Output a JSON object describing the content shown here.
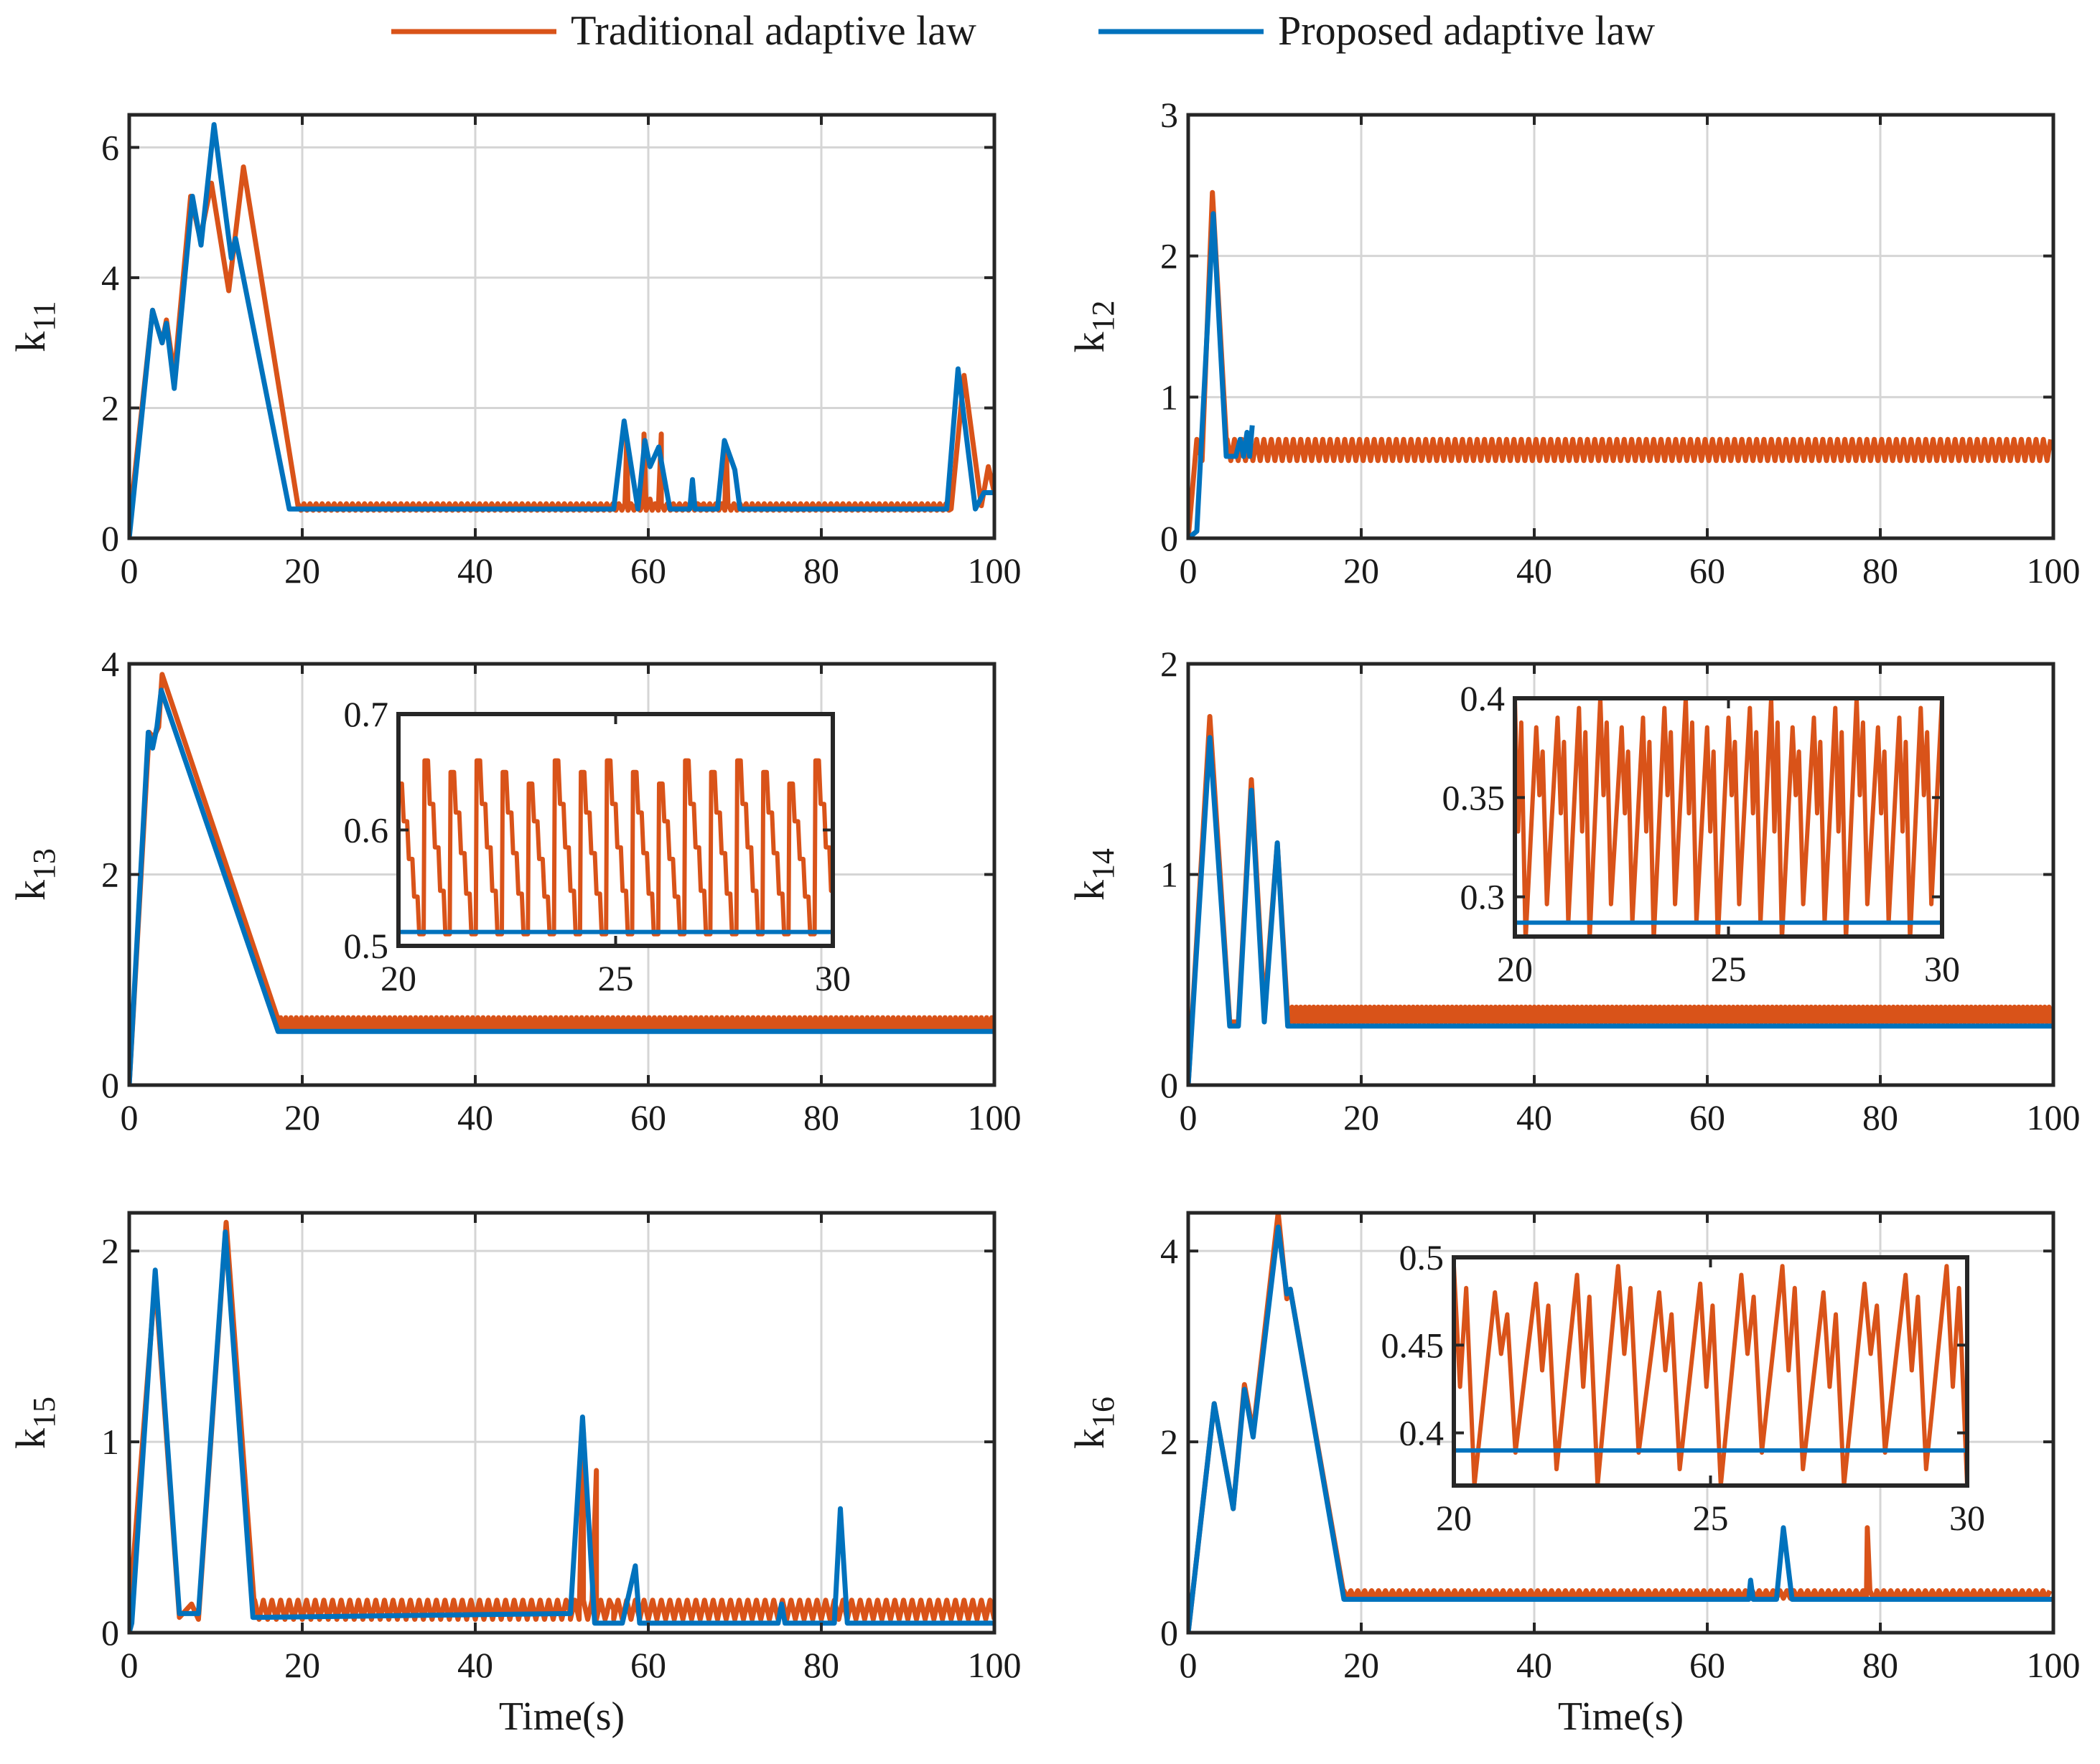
{
  "legend": {
    "entries": [
      {
        "label": "Traditional adaptive law",
        "color": "#D95319"
      },
      {
        "label": "Proposed adaptive law",
        "color": "#0072BD"
      }
    ]
  },
  "chart_data": [
    {
      "id": "k11",
      "type": "line",
      "ylabel": "k",
      "ylabel_sub": "11",
      "xlabel": "",
      "xlim": [
        0,
        100
      ],
      "ylim": [
        0,
        6.5
      ],
      "xticks": [
        "0",
        "20",
        "40",
        "60",
        "80",
        "100"
      ],
      "yticks": [
        "0",
        "2",
        "4",
        "6"
      ],
      "grid": true,
      "series": [
        {
          "name": "Traditional adaptive law",
          "osc": {
            "from": 19.5,
            "to": 95,
            "base": 0.43,
            "amp": 0.1,
            "period": 0.7
          },
          "x": [
            0,
            2.7,
            3.8,
            4.3,
            5.2,
            7.1,
            8.2,
            9.5,
            11.5,
            13.2,
            19.5,
            56,
            57.5,
            58.8,
            59.5,
            60.2,
            61.5,
            65,
            66,
            69,
            70.5,
            72,
            95,
            96.5,
            98.5,
            99.3,
            100
          ],
          "y": [
            0.2,
            3.5,
            3.0,
            3.35,
            2.5,
            5.25,
            4.6,
            5.45,
            3.8,
            5.7,
            0.5,
            0.45,
            1.5,
            0.55,
            1.6,
            0.6,
            1.6,
            0.5,
            0.5,
            1.4,
            0.5,
            0.5,
            0.45,
            2.5,
            0.5,
            1.1,
            0.7
          ]
        },
        {
          "name": "Proposed adaptive law",
          "x": [
            0,
            2.7,
            3.8,
            4.3,
            5.2,
            7.3,
            8.3,
            9.8,
            11.8,
            12.3,
            18.5,
            56,
            57.2,
            58.8,
            59.6,
            60.2,
            61.2,
            62.5,
            64.8,
            65.1,
            65.4,
            68,
            68.8,
            70,
            70.6,
            72,
            94.5,
            95.8,
            97.8,
            98.8,
            100
          ],
          "y": [
            0,
            3.5,
            3.0,
            3.3,
            2.3,
            5.25,
            4.5,
            6.35,
            4.3,
            4.6,
            0.45,
            0.45,
            1.8,
            0.45,
            1.5,
            1.1,
            1.4,
            0.45,
            0.45,
            0.9,
            0.45,
            0.45,
            1.5,
            1.05,
            0.45,
            0.45,
            0.45,
            2.6,
            0.45,
            0.7,
            0.7
          ]
        }
      ]
    },
    {
      "id": "k12",
      "type": "line",
      "ylabel": "k",
      "ylabel_sub": "12",
      "xlabel": "",
      "xlim": [
        0,
        100
      ],
      "ylim": [
        0,
        3
      ],
      "xticks": [
        "0",
        "20",
        "40",
        "60",
        "80",
        "100"
      ],
      "yticks": [
        "0",
        "1",
        "2",
        "3"
      ],
      "grid": true,
      "series": [
        {
          "name": "Traditional adaptive law",
          "osc": {
            "from": 4.5,
            "to": 100,
            "base": 0.55,
            "amp": 0.15,
            "period": 0.85
          },
          "x": [
            0,
            1,
            1.6,
            2.8,
            4.5
          ],
          "y": [
            0,
            0.7,
            0.55,
            2.45,
            0.6
          ]
        },
        {
          "name": "Proposed adaptive law",
          "x": [
            0,
            1.0,
            2.9,
            4.4,
            5.5,
            6.0,
            6.4,
            6.8,
            7.1,
            7.4
          ],
          "y": [
            0,
            0.05,
            2.3,
            0.58,
            0.58,
            0.7,
            0.58,
            0.75,
            0.58,
            0.8
          ]
        }
      ]
    },
    {
      "id": "k13",
      "type": "line",
      "ylabel": "k",
      "ylabel_sub": "13",
      "xlabel": "",
      "xlim": [
        0,
        100
      ],
      "ylim": [
        0,
        4
      ],
      "xticks": [
        "0",
        "20",
        "40",
        "60",
        "80",
        "100"
      ],
      "yticks": [
        "0",
        "2",
        "4"
      ],
      "grid": true,
      "series": [
        {
          "name": "Traditional adaptive law",
          "osc": {
            "from": 17.5,
            "to": 100,
            "base": 0.52,
            "amp": 0.12,
            "period": 0.6
          },
          "x": [
            0,
            2.3,
            2.8,
            3.4,
            3.8,
            17.5
          ],
          "y": [
            0,
            3.35,
            3.3,
            3.4,
            3.9,
            0.55
          ]
        },
        {
          "name": "Proposed adaptive law",
          "x": [
            0,
            2.2,
            2.7,
            3.2,
            3.7,
            17.2,
            100
          ],
          "y": [
            0,
            3.35,
            3.2,
            3.4,
            3.75,
            0.51,
            0.51
          ]
        }
      ],
      "inset": {
        "xlim": [
          20,
          30
        ],
        "ylim": [
          0.5,
          0.7
        ],
        "xticks": [
          "20",
          "25",
          "30"
        ],
        "yticks": [
          "0.5",
          "0.6",
          "0.7"
        ],
        "series": [
          {
            "name": "Traditional adaptive law",
            "sawtooth": {
              "base": 0.51,
              "amp_hi": 0.66,
              "period": 0.6
            }
          },
          {
            "name": "Proposed adaptive law",
            "x": [
              20,
              30
            ],
            "y": [
              0.512,
              0.512
            ]
          }
        ]
      }
    },
    {
      "id": "k14",
      "type": "line",
      "ylabel": "k",
      "ylabel_sub": "14",
      "xlabel": "",
      "xlim": [
        0,
        100
      ],
      "ylim": [
        0,
        2
      ],
      "xticks": [
        "0",
        "20",
        "40",
        "60",
        "80",
        "100"
      ],
      "yticks": [
        "0",
        "1",
        "2"
      ],
      "grid": true,
      "series": [
        {
          "name": "Traditional adaptive law",
          "osc": {
            "from": 11.5,
            "to": 100,
            "base": 0.3,
            "amp": 0.07,
            "period": 0.5
          },
          "x": [
            0,
            2.5,
            4.8,
            5.8,
            7.3,
            8.8,
            10.3,
            11.5
          ],
          "y": [
            0,
            1.75,
            0.3,
            0.3,
            1.45,
            0.35,
            1.15,
            0.33
          ]
        },
        {
          "name": "Proposed adaptive law",
          "x": [
            0,
            2.5,
            4.8,
            5.8,
            7.3,
            8.8,
            10.3,
            11.5,
            100
          ],
          "y": [
            0,
            1.65,
            0.28,
            0.28,
            1.4,
            0.3,
            1.15,
            0.28,
            0.28
          ]
        }
      ],
      "inset": {
        "xlim": [
          20,
          30
        ],
        "ylim": [
          0.28,
          0.4
        ],
        "xticks": [
          "20",
          "25",
          "30"
        ],
        "yticks": [
          "0.3",
          "0.35",
          "0.4"
        ],
        "series": [
          {
            "name": "Traditional adaptive law",
            "zig": {
              "lo": 0.278,
              "hi": 0.4,
              "period": 0.5
            }
          },
          {
            "name": "Proposed adaptive law",
            "x": [
              20,
              30
            ],
            "y": [
              0.287,
              0.287
            ]
          }
        ]
      }
    },
    {
      "id": "k15",
      "type": "line",
      "ylabel": "k",
      "ylabel_sub": "15",
      "xlabel": "Time(s)",
      "xlim": [
        0,
        100
      ],
      "ylim": [
        0,
        2.2
      ],
      "xticks": [
        "0",
        "20",
        "40",
        "60",
        "80",
        "100"
      ],
      "yticks": [
        "0",
        "1",
        "2"
      ],
      "grid": true,
      "series": [
        {
          "name": "Traditional adaptive law",
          "osc": {
            "from": 14.5,
            "to": 100,
            "base": 0.07,
            "amp": 0.1,
            "period": 1.0
          },
          "x": [
            0,
            3.0,
            5.8,
            7.2,
            8.0,
            11.2,
            14.5,
            51,
            52.5,
            54.0,
            55.2,
            56.0
          ],
          "y": [
            0.1,
            1.85,
            0.08,
            0.15,
            0.07,
            2.15,
            0.12,
            0.1,
            1.05,
            0.85,
            0.1,
            0.12
          ]
        },
        {
          "name": "Proposed adaptive law",
          "x": [
            0,
            0.3,
            3.0,
            5.8,
            8.0,
            11.1,
            14.3,
            51,
            52.4,
            53.8,
            54.5,
            57,
            58.5,
            59,
            75,
            75.4,
            75.8,
            81.5,
            82.2,
            83,
            100
          ],
          "y": [
            0,
            0.05,
            1.9,
            0.1,
            0.1,
            2.1,
            0.08,
            0.1,
            1.13,
            0.05,
            0.05,
            0.05,
            0.35,
            0.05,
            0.05,
            0.15,
            0.05,
            0.05,
            0.65,
            0.05,
            0.05
          ]
        }
      ]
    },
    {
      "id": "k16",
      "type": "line",
      "ylabel": "k",
      "ylabel_sub": "16",
      "xlabel": "Time(s)",
      "xlim": [
        0,
        100
      ],
      "ylim": [
        0,
        4.4
      ],
      "xticks": [
        "0",
        "20",
        "40",
        "60",
        "80",
        "100"
      ],
      "yticks": [
        "0",
        "2",
        "4"
      ],
      "grid": true,
      "series": [
        {
          "name": "Traditional adaptive law",
          "osc": {
            "from": 18,
            "to": 100,
            "base": 0.36,
            "amp": 0.08,
            "period": 0.8
          },
          "x": [
            0,
            3,
            5.2,
            6.5,
            7.5,
            10.4,
            11.4,
            11.8,
            18,
            77,
            78.5,
            79.5
          ],
          "y": [
            0,
            2.4,
            1.3,
            2.6,
            2.1,
            4.4,
            3.5,
            3.6,
            0.4,
            0.4,
            1.1,
            0.4
          ]
        },
        {
          "name": "Proposed adaptive law",
          "x": [
            0,
            3,
            5.2,
            6.5,
            7.5,
            10.4,
            11.4,
            11.8,
            18,
            64.8,
            65.0,
            65.3,
            68,
            68.8,
            69.8,
            71,
            100
          ],
          "y": [
            0,
            2.4,
            1.3,
            2.55,
            2.05,
            4.25,
            3.55,
            3.6,
            0.35,
            0.35,
            0.55,
            0.35,
            0.35,
            1.1,
            0.35,
            0.35,
            0.35
          ]
        }
      ],
      "inset": {
        "xlim": [
          20,
          30
        ],
        "ylim": [
          0.37,
          0.5
        ],
        "xticks": [
          "20",
          "25",
          "30"
        ],
        "yticks": [
          "0.4",
          "0.45",
          "0.5"
        ],
        "series": [
          {
            "name": "Traditional adaptive law",
            "zig": {
              "lo": 0.37,
              "hi": 0.495,
              "period": 0.8
            }
          },
          {
            "name": "Proposed adaptive law",
            "x": [
              20,
              30
            ],
            "y": [
              0.39,
              0.39
            ]
          }
        ]
      }
    }
  ]
}
